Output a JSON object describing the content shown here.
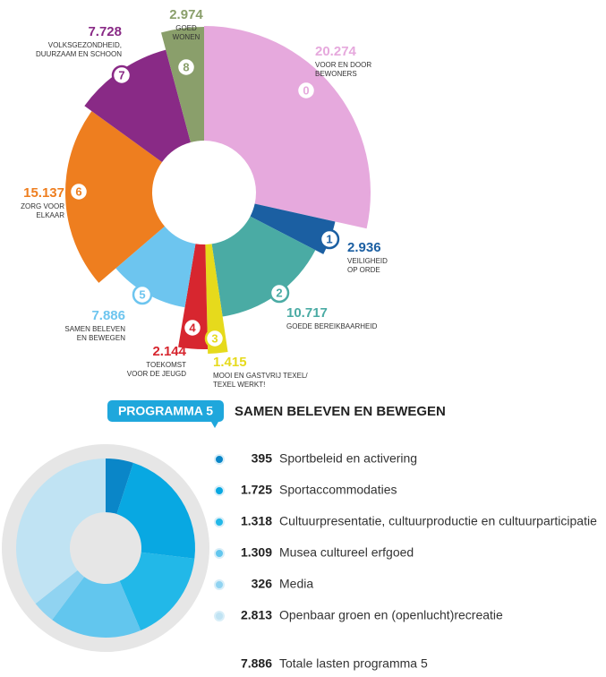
{
  "chart_data": [
    {
      "type": "pie",
      "numbers": [
        "0",
        "1",
        "2",
        "3",
        "4",
        "5",
        "6",
        "7",
        "8"
      ],
      "categories": [
        [
          "VOOR EN DOOR",
          "BEWONERS"
        ],
        [
          "VEILIGHEID",
          "OP ORDE"
        ],
        [
          "GOEDE BEREIKBAARHEID"
        ],
        [
          "MOOI EN GASTVRIJ TEXEL/",
          "TEXEL WERKT!"
        ],
        [
          "TOEKOMST",
          "VOOR DE JEUGD"
        ],
        [
          "SAMEN BELEVEN",
          "EN BEWEGEN"
        ],
        [
          "ZORG VOOR",
          "ELKAAR"
        ],
        [
          "VOLKSGEZONDHEID,",
          "DUURZAAM EN SCHOON"
        ],
        [
          "GOED",
          "WONEN"
        ]
      ],
      "values": [
        20274,
        2936,
        10717,
        1415,
        2144,
        7886,
        15137,
        7728,
        2974
      ],
      "value_labels": [
        "20.274",
        "2.936",
        "10.717",
        "1.415",
        "2.144",
        "7.886",
        "15.137",
        "7.728",
        "2.974"
      ],
      "colors": [
        "#e6a9dd",
        "#1b5fa2",
        "#4aaba4",
        "#e6da1c",
        "#d7262f",
        "#6dc5ef",
        "#ee7e1f",
        "#892a86",
        "#8a9f6b"
      ]
    },
    {
      "type": "donut",
      "badge": "PROGRAMMA 5",
      "title": "SAMEN BELEVEN EN BEWEGEN",
      "categories": [
        "Sportbeleid en activering",
        "Sportaccommodaties",
        "Cultuurpresentatie, cultuurproductie en cultuurparticipatie",
        "Musea cultureel erfgoed",
        "Media",
        "Openbaar groen en (openlucht)recreatie"
      ],
      "values": [
        395,
        1725,
        1318,
        1309,
        326,
        2813
      ],
      "value_labels": [
        "395",
        "1.725",
        "1.318",
        "1.309",
        "326",
        "2.813"
      ],
      "colors": [
        "#0a86c8",
        "#08a8e2",
        "#22b8e8",
        "#62c6ee",
        "#90d3f1",
        "#c0e3f3"
      ],
      "total": 7886,
      "total_label": "7.886",
      "total_text": "Totale lasten programma 5"
    }
  ]
}
